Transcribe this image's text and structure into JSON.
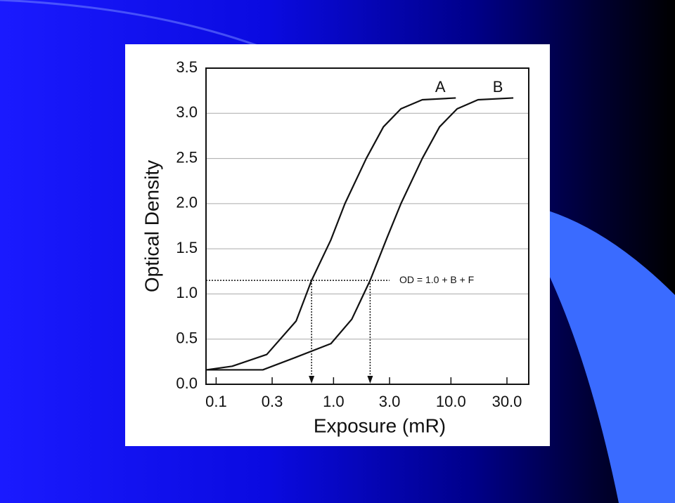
{
  "chart_data": {
    "type": "line",
    "xlabel": "Exposure (mR)",
    "ylabel": "Optical Density",
    "xscale": "log",
    "xlim": [
      0.082,
      46
    ],
    "ylim": [
      0,
      3.5
    ],
    "xticks": [
      0.1,
      0.3,
      {
        "value": 1,
        "label": "1.0"
      },
      {
        "value": 3,
        "label": "3.0"
      },
      {
        "value": 10,
        "label": "10.0"
      },
      {
        "value": 30,
        "label": "30.0"
      }
    ],
    "yticks": [
      {
        "value": 0,
        "label": "0.0"
      },
      0.5,
      {
        "value": 1,
        "label": "1.0"
      },
      1.5,
      {
        "value": 2,
        "label": "2.0"
      },
      2.5,
      {
        "value": 3,
        "label": "3.0"
      },
      3.5
    ],
    "grid": true,
    "series": [
      {
        "name": "A",
        "color": "#111111",
        "x": [
          0.083,
          0.137,
          0.27,
          0.48,
          0.65,
          0.95,
          1.25,
          1.9,
          2.66,
          3.75,
          5.7,
          11
        ],
        "values": [
          0.16,
          0.2,
          0.33,
          0.7,
          1.15,
          1.6,
          2.0,
          2.5,
          2.85,
          3.05,
          3.15,
          3.17
        ]
      },
      {
        "name": "B",
        "color": "#111111",
        "x": [
          0.083,
          0.25,
          0.48,
          0.95,
          1.43,
          2.05,
          2.85,
          3.75,
          5.7,
          8,
          11.3,
          17,
          34
        ],
        "values": [
          0.16,
          0.16,
          0.3,
          0.45,
          0.72,
          1.15,
          1.62,
          2.0,
          2.5,
          2.85,
          3.05,
          3.15,
          3.17
        ]
      }
    ],
    "annotation": {
      "text": "OD = 1.0 + B + F",
      "y": 1.15,
      "x_end": 3.0,
      "arrow_x": [
        0.65,
        2.05
      ]
    }
  }
}
